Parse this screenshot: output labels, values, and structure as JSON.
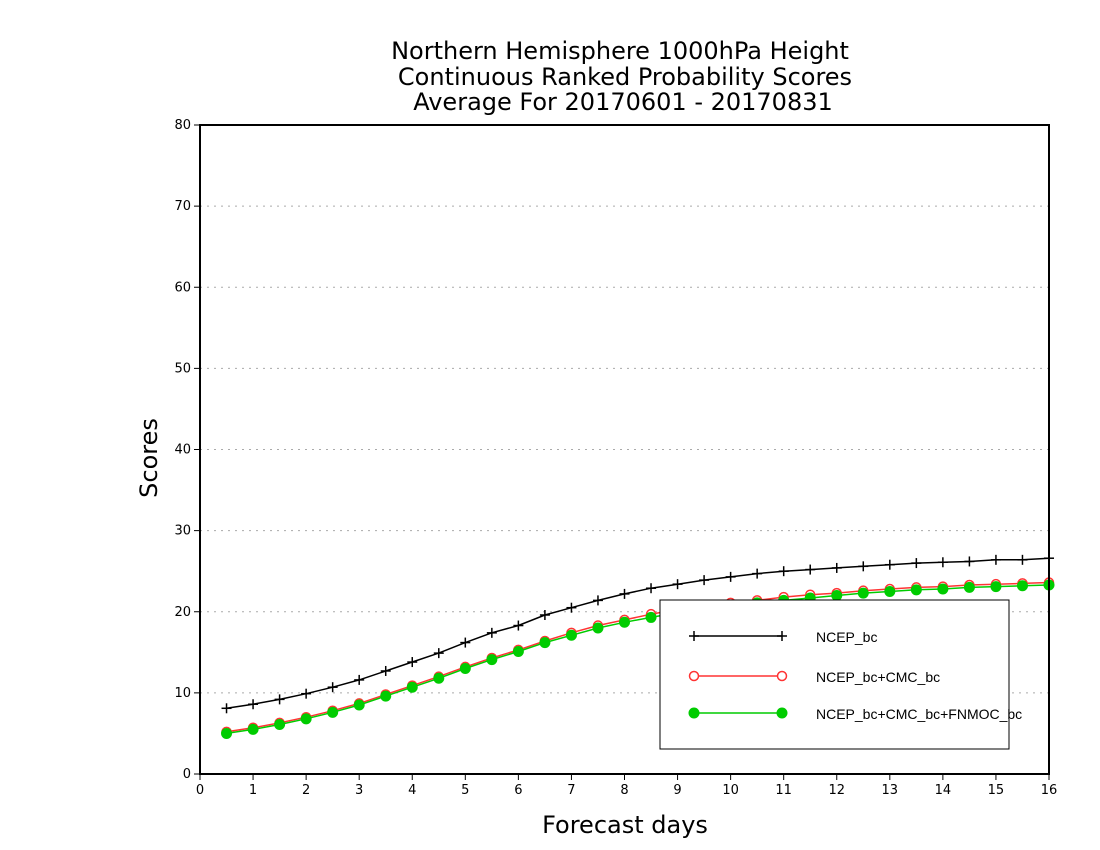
{
  "chart_data": {
    "type": "line",
    "title": [
      "Northern Hemisphere 1000hPa Height",
      "Continuous Ranked Probability Scores",
      "Average For 20170601 - 20170831"
    ],
    "xlabel": "Forecast days",
    "ylabel": "Scores",
    "xlim": [
      0,
      16
    ],
    "ylim": [
      0,
      80
    ],
    "xticks": [
      0,
      1,
      2,
      3,
      4,
      5,
      6,
      7,
      8,
      9,
      10,
      11,
      12,
      13,
      14,
      15,
      16
    ],
    "yticks": [
      0,
      10,
      20,
      30,
      40,
      50,
      60,
      70,
      80
    ],
    "grid": "horizontal dotted",
    "legend_position": "bottom-right",
    "x": [
      0.5,
      1,
      1.5,
      2,
      2.5,
      3,
      3.5,
      4,
      4.5,
      5,
      5.5,
      6,
      6.5,
      7,
      7.5,
      8,
      8.5,
      9,
      9.5,
      10,
      10.5,
      11,
      11.5,
      12,
      12.5,
      13,
      13.5,
      14,
      14.5,
      15,
      15.5,
      16
    ],
    "series": [
      {
        "name": "NCEP_bc",
        "color": "#000000",
        "marker": "plus",
        "values": [
          8.1,
          8.6,
          9.2,
          9.9,
          10.7,
          11.6,
          12.7,
          13.8,
          14.9,
          16.2,
          17.4,
          18.3,
          19.6,
          20.5,
          21.4,
          22.2,
          22.9,
          23.4,
          23.9,
          24.3,
          24.7,
          25.0,
          25.2,
          25.4,
          25.6,
          25.8,
          26.0,
          26.1,
          26.2,
          26.4,
          26.4,
          26.6
        ]
      },
      {
        "name": "NCEP_bc+CMC_bc",
        "color": "#ff3333",
        "marker": "open-circle",
        "values": [
          5.2,
          5.7,
          6.3,
          7.0,
          7.8,
          8.7,
          9.8,
          10.9,
          12.0,
          13.2,
          14.3,
          15.3,
          16.4,
          17.4,
          18.3,
          19.0,
          19.7,
          20.3,
          20.7,
          21.1,
          21.4,
          21.8,
          22.1,
          22.3,
          22.6,
          22.8,
          23.0,
          23.1,
          23.3,
          23.4,
          23.5,
          23.6
        ]
      },
      {
        "name": "NCEP_bc+CMC_bc+FNMOC_bc",
        "color": "#00cc00",
        "marker": "filled-circle",
        "values": [
          5.0,
          5.5,
          6.1,
          6.8,
          7.6,
          8.5,
          9.6,
          10.7,
          11.8,
          13.0,
          14.1,
          15.1,
          16.2,
          17.1,
          18.0,
          18.7,
          19.3,
          19.9,
          20.3,
          20.7,
          21.1,
          21.4,
          21.7,
          22.0,
          22.3,
          22.5,
          22.7,
          22.8,
          23.0,
          23.1,
          23.2,
          23.3
        ]
      }
    ]
  }
}
